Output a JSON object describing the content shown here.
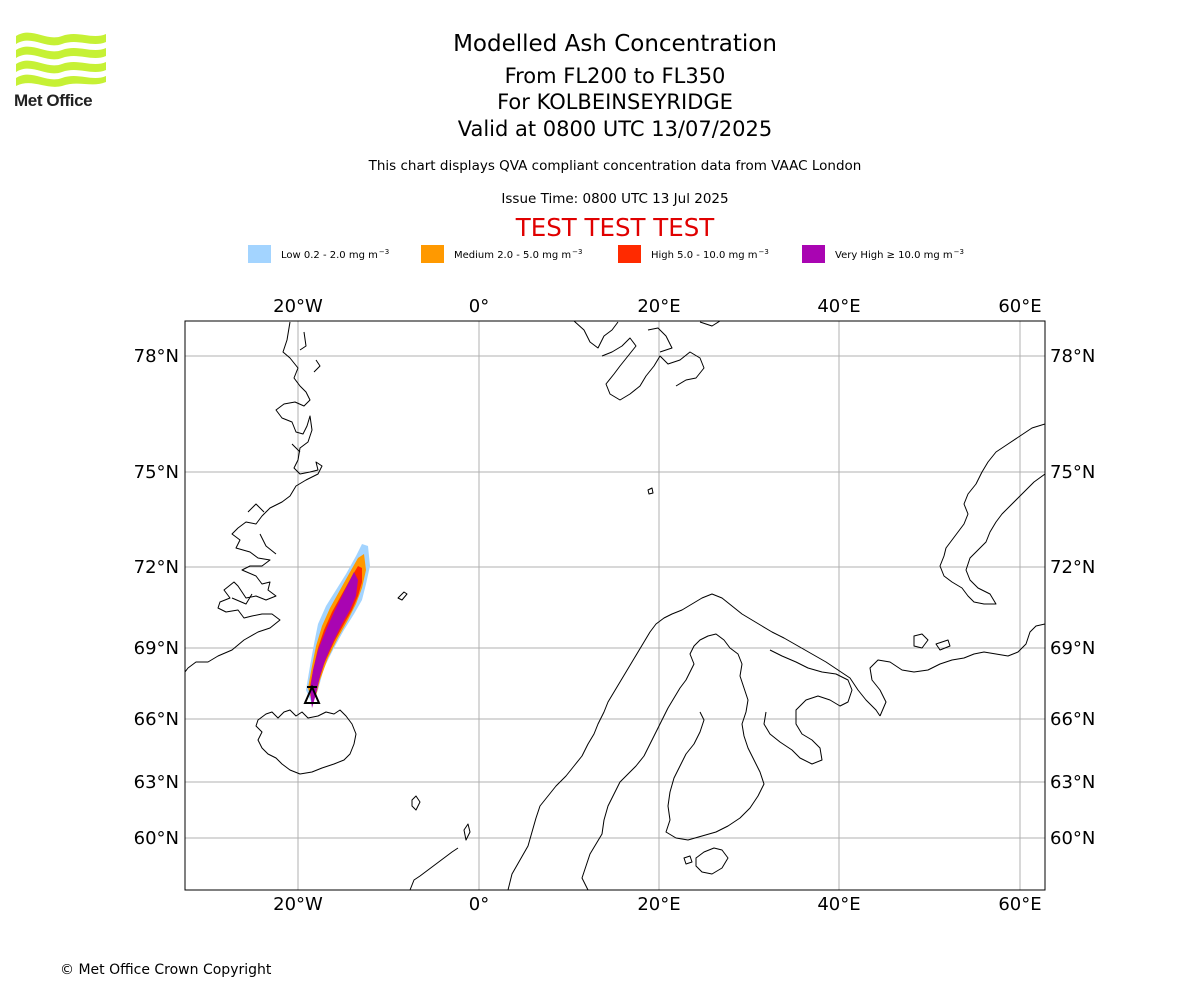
{
  "brand": {
    "name": "Met Office",
    "logo_color": "#c6f135"
  },
  "titles": {
    "main": "Modelled Ash Concentration",
    "levels": "From FL200 to FL350",
    "volcano": "For KOLBEINSEYRIDGE",
    "valid": "Valid at 0800 UTC 13/07/2025",
    "source": "This chart displays QVA compliant concentration data from VAAC London",
    "issue": "Issue Time: 0800 UTC 13 Jul 2025",
    "test_banner": "TEST TEST TEST"
  },
  "legend": [
    {
      "name": "Low",
      "range": "0.2 - 2.0",
      "unit": "mg m",
      "exponent": "−3",
      "color": "#a3d4ff"
    },
    {
      "name": "Medium",
      "range": "2.0 - 5.0",
      "unit": "mg m",
      "exponent": "−3",
      "color": "#ff9900"
    },
    {
      "name": "High",
      "range": "5.0 - 10.0",
      "unit": "mg m",
      "exponent": "−3",
      "color": "#ff2a00"
    },
    {
      "name": "Very High",
      "range": "≥ 10.0",
      "unit": "mg m",
      "exponent": "−3",
      "color": "#a905b2"
    }
  ],
  "map": {
    "longitude_labels": [
      "20°W",
      "0°",
      "20°E",
      "40°E",
      "60°E"
    ],
    "latitude_labels": [
      "78°N",
      "75°N",
      "72°N",
      "69°N",
      "66°N",
      "63°N",
      "60°N"
    ],
    "grid_color": "#b0b0b0",
    "volcano_marker": "triangle-marker"
  },
  "footer": {
    "copyright": "© Met Office Crown Copyright"
  }
}
